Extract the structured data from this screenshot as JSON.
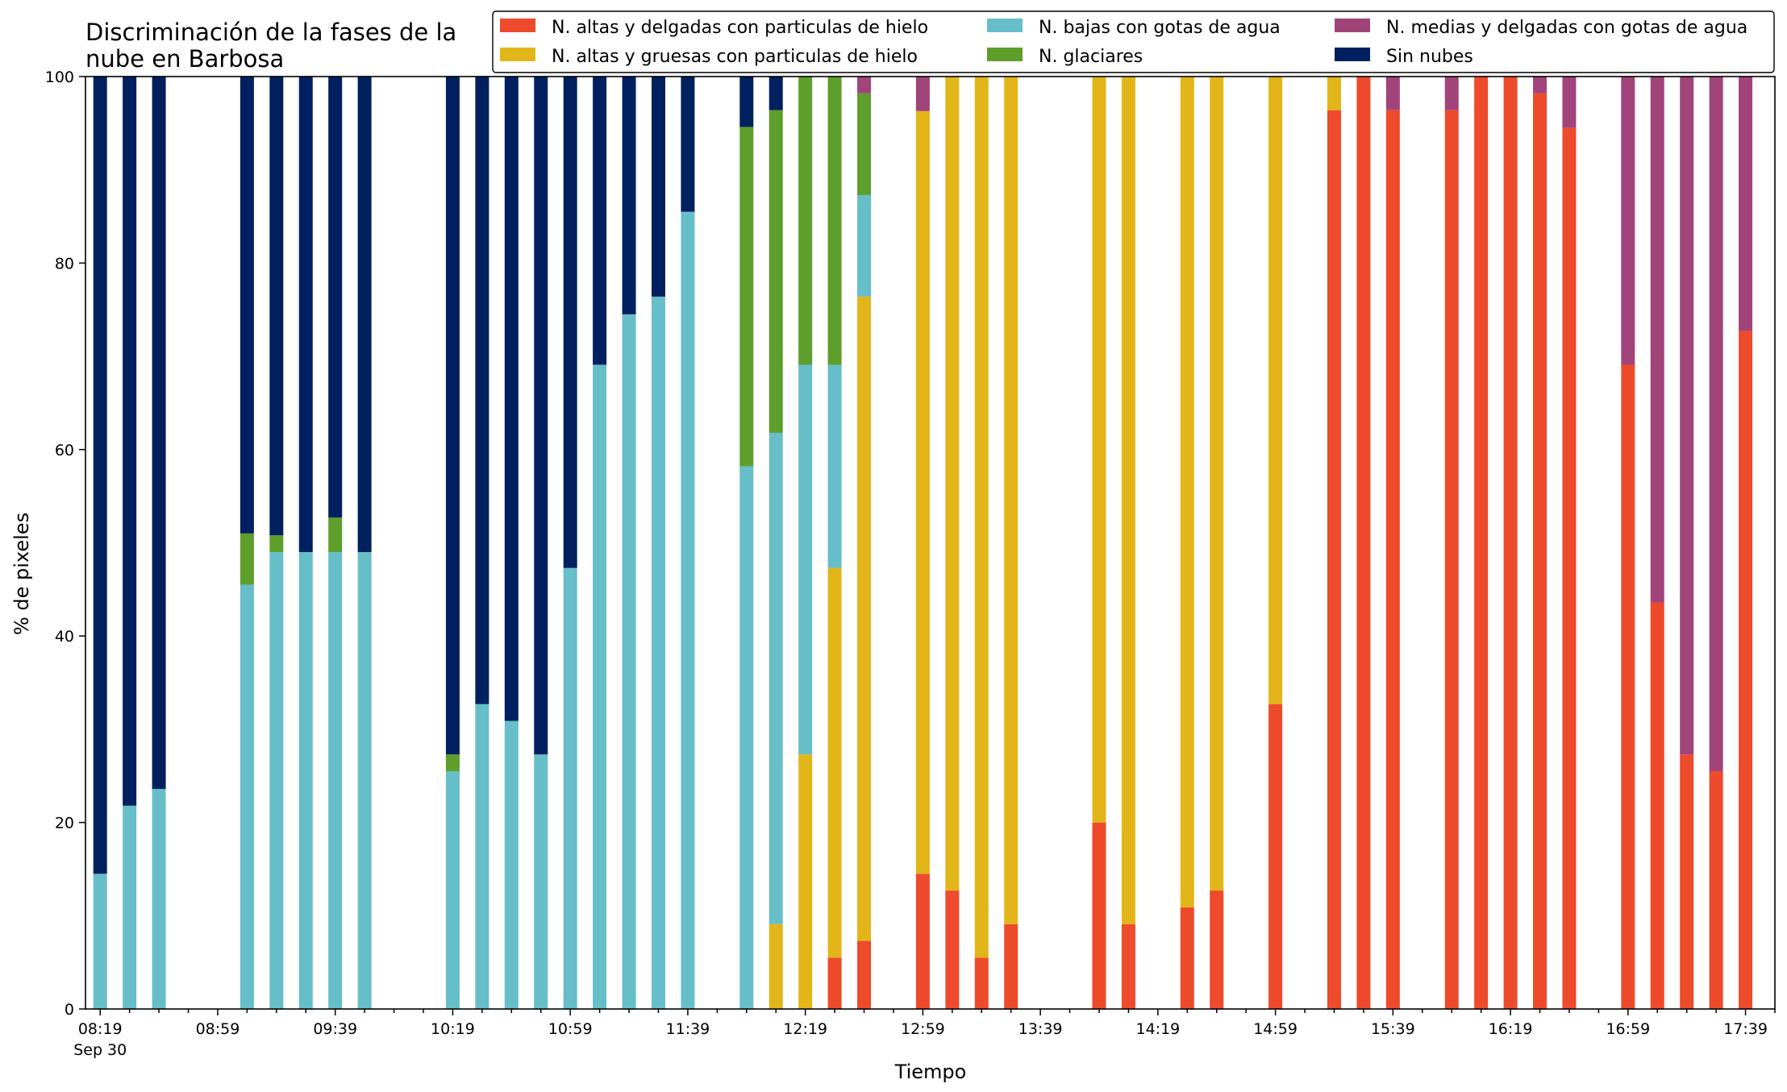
{
  "chart_data": {
    "type": "bar",
    "stacked": true,
    "title_lines": [
      "Discriminación de la fases de la",
      "nube en Barbosa"
    ],
    "xlabel": "Tiempo",
    "ylabel": "% de pixeles",
    "ylim": [
      0,
      100
    ],
    "y_ticks": [
      "0",
      "20",
      "40",
      "60",
      "80",
      "100"
    ],
    "x_tick_labels": [
      "08:19",
      "08:59",
      "09:39",
      "10:19",
      "10:59",
      "11:39",
      "12:19",
      "12:59",
      "13:39",
      "14:19",
      "14:59",
      "15:39",
      "16:19",
      "16:59",
      "17:39"
    ],
    "x_date_label": "Sep 30",
    "x_range_minutes": [
      "08:14",
      "17:49"
    ],
    "x_tick_step_minutes": 10,
    "x_label_step_minutes": 40,
    "grid": false,
    "legend_placement": "top-right",
    "legend_columns": 3,
    "series": [
      {
        "name": "N. altas y delgadas con particulas de hielo",
        "color": "#ee4a2c"
      },
      {
        "name": "N. altas y gruesas con particulas de hielo",
        "color": "#e2b619"
      },
      {
        "name": "N. bajas con gotas de agua",
        "color": "#66bec9"
      },
      {
        "name": "N. glaciares",
        "color": "#5e9e2b"
      },
      {
        "name": "N. medias y delgadas con gotas de agua",
        "color": "#a0447a"
      },
      {
        "name": "Sin nubes",
        "color": "#00205f"
      }
    ],
    "bars": [
      {
        "time": "08:19",
        "values": [
          0,
          0,
          14.5,
          0,
          0,
          85.5
        ]
      },
      {
        "time": "08:29",
        "values": [
          0,
          0,
          21.8,
          0,
          0,
          78.2
        ]
      },
      {
        "time": "08:39",
        "values": [
          0,
          0,
          23.6,
          0,
          0,
          76.4
        ]
      },
      {
        "time": "09:09",
        "values": [
          0,
          0,
          45.5,
          5.5,
          0,
          49.0
        ]
      },
      {
        "time": "09:19",
        "values": [
          0,
          0,
          49.0,
          1.8,
          0,
          49.2
        ]
      },
      {
        "time": "09:29",
        "values": [
          0,
          0,
          49.0,
          0,
          0,
          51.0
        ]
      },
      {
        "time": "09:39",
        "values": [
          0,
          0,
          49.0,
          3.7,
          0,
          47.3
        ]
      },
      {
        "time": "09:49",
        "values": [
          0,
          0,
          49.0,
          0,
          0,
          51.0
        ]
      },
      {
        "time": "10:19",
        "values": [
          0,
          0,
          25.5,
          1.8,
          0,
          72.7
        ]
      },
      {
        "time": "10:29",
        "values": [
          0,
          0,
          32.7,
          0,
          0,
          67.3
        ]
      },
      {
        "time": "10:39",
        "values": [
          0,
          0,
          30.9,
          0,
          0,
          69.1
        ]
      },
      {
        "time": "10:49",
        "values": [
          0,
          0,
          27.3,
          0,
          0,
          72.7
        ]
      },
      {
        "time": "10:59",
        "values": [
          0,
          0,
          47.3,
          0,
          0,
          52.7
        ]
      },
      {
        "time": "11:09",
        "values": [
          0,
          0,
          69.1,
          0,
          0,
          30.9
        ]
      },
      {
        "time": "11:19",
        "values": [
          0,
          0,
          74.5,
          0,
          0,
          25.5
        ]
      },
      {
        "time": "11:29",
        "values": [
          0,
          0,
          76.4,
          0,
          0,
          23.6
        ]
      },
      {
        "time": "11:39",
        "values": [
          0,
          0,
          85.5,
          0,
          0,
          14.5
        ]
      },
      {
        "time": "11:59",
        "values": [
          0,
          0,
          58.2,
          36.4,
          0,
          5.4
        ]
      },
      {
        "time": "12:09",
        "values": [
          0,
          9.1,
          52.7,
          34.6,
          0,
          3.6
        ]
      },
      {
        "time": "12:19",
        "values": [
          0,
          27.3,
          41.8,
          30.9,
          0,
          0
        ]
      },
      {
        "time": "12:29",
        "values": [
          5.5,
          41.8,
          21.8,
          30.9,
          0,
          0
        ]
      },
      {
        "time": "12:39",
        "values": [
          7.3,
          69.1,
          10.9,
          10.9,
          1.8,
          0
        ]
      },
      {
        "time": "12:59",
        "values": [
          14.5,
          81.8,
          0,
          0,
          3.7,
          0
        ]
      },
      {
        "time": "13:09",
        "values": [
          12.7,
          87.3,
          0,
          0,
          0,
          0
        ]
      },
      {
        "time": "13:19",
        "values": [
          5.5,
          94.5,
          0,
          0,
          0,
          0
        ]
      },
      {
        "time": "13:29",
        "values": [
          9.1,
          90.9,
          0,
          0,
          0,
          0
        ]
      },
      {
        "time": "13:59",
        "values": [
          20.0,
          80.0,
          0,
          0,
          0,
          0
        ]
      },
      {
        "time": "14:09",
        "values": [
          9.1,
          90.9,
          0,
          0,
          0,
          0
        ]
      },
      {
        "time": "14:29",
        "values": [
          10.9,
          89.1,
          0,
          0,
          0,
          0
        ]
      },
      {
        "time": "14:39",
        "values": [
          12.7,
          87.3,
          0,
          0,
          0,
          0
        ]
      },
      {
        "time": "14:59",
        "values": [
          32.7,
          67.3,
          0,
          0,
          0,
          0
        ]
      },
      {
        "time": "15:19",
        "values": [
          96.4,
          3.6,
          0,
          0,
          0,
          0
        ]
      },
      {
        "time": "15:29",
        "values": [
          100,
          0,
          0,
          0,
          0,
          0
        ]
      },
      {
        "time": "15:39",
        "values": [
          96.4,
          0,
          0,
          0,
          3.6,
          0
        ]
      },
      {
        "time": "15:59",
        "values": [
          96.4,
          0,
          0,
          0,
          3.6,
          0
        ]
      },
      {
        "time": "16:09",
        "values": [
          100,
          0,
          0,
          0,
          0,
          0
        ]
      },
      {
        "time": "16:19",
        "values": [
          100,
          0,
          0,
          0,
          0,
          0
        ]
      },
      {
        "time": "16:29",
        "values": [
          98.2,
          0,
          0,
          0,
          1.8,
          0
        ]
      },
      {
        "time": "16:39",
        "values": [
          94.5,
          0,
          0,
          0,
          5.5,
          0
        ]
      },
      {
        "time": "16:59",
        "values": [
          69.1,
          0,
          0,
          0,
          30.9,
          0
        ]
      },
      {
        "time": "17:09",
        "values": [
          43.6,
          0,
          0,
          0,
          56.4,
          0
        ]
      },
      {
        "time": "17:19",
        "values": [
          27.3,
          0,
          0,
          0,
          72.7,
          0
        ]
      },
      {
        "time": "17:29",
        "values": [
          25.5,
          0,
          0,
          0,
          74.5,
          0
        ]
      },
      {
        "time": "17:39",
        "values": [
          72.7,
          0,
          0,
          0,
          27.3,
          0
        ]
      }
    ]
  }
}
